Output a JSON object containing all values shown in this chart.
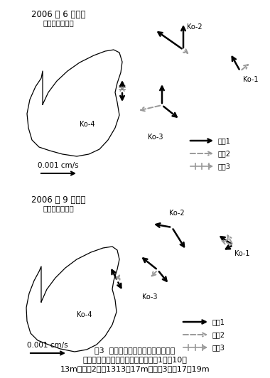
{
  "title1": "2006 年 6 月観測",
  "subtitle1": "地下水位最低期",
  "title2": "2006 年 9 月観測",
  "subtitle2": "地下水位上昇期",
  "scale_label": "0.001 cm/s",
  "fig_caption": "図3  地下水流向・流速観測値の一例",
  "fig_caption2": "地表から各細層までの距離は、細層1：白1010～",
  "fig_caption3": "13m、細層2：癰1313～17m、細層3：癰17～19m",
  "legend1": "細層1",
  "legend2": "細層2",
  "legend3": "細層3",
  "background": "#ffffff"
}
